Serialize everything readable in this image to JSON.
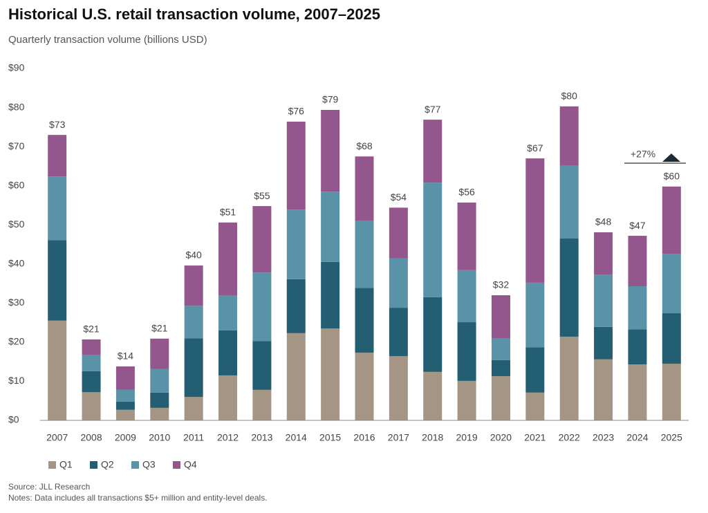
{
  "chart_data": {
    "type": "stacked_bar",
    "title": "Historical U.S. retail transaction volume, 2007–2025",
    "subtitle": "Quarterly transaction volume (billions USD)",
    "categories": [
      "2007",
      "2008",
      "2009",
      "2010",
      "2011",
      "2012",
      "2013",
      "2014",
      "2015",
      "2016",
      "2017",
      "2018",
      "2019",
      "2020",
      "2021",
      "2022",
      "2023",
      "2024",
      "2025"
    ],
    "series": [
      {
        "name": "Q1",
        "color": "#a59585",
        "values": [
          25.5,
          7.2,
          2.7,
          3.2,
          6.0,
          11.5,
          7.8,
          22.3,
          23.5,
          17.3,
          16.4,
          12.4,
          10.1,
          11.3,
          7.1,
          21.4,
          15.6,
          14.3,
          14.5
        ]
      },
      {
        "name": "Q2",
        "color": "#235e72",
        "values": [
          20.6,
          5.4,
          2.1,
          3.9,
          15.0,
          11.5,
          12.5,
          13.8,
          17.0,
          16.6,
          12.4,
          19.1,
          15.0,
          4.1,
          11.6,
          25.1,
          8.3,
          9.0,
          12.9
        ]
      },
      {
        "name": "Q3",
        "color": "#5a93a8",
        "values": [
          16.3,
          4.2,
          3.0,
          6.0,
          8.3,
          9.0,
          17.5,
          17.8,
          18.0,
          17.2,
          12.6,
          29.3,
          13.3,
          5.5,
          16.5,
          18.6,
          13.4,
          11.0,
          15.2
        ]
      },
      {
        "name": "Q4",
        "color": "#93578e",
        "values": [
          10.6,
          3.9,
          6.0,
          7.8,
          10.3,
          18.6,
          17.0,
          22.5,
          20.9,
          16.4,
          13.0,
          16.1,
          17.3,
          11.1,
          31.8,
          15.2,
          10.8,
          12.9,
          17.2
        ]
      }
    ],
    "totals": {
      "values": [
        73,
        21,
        14,
        21,
        40,
        51,
        55,
        76,
        79,
        68,
        54,
        77,
        56,
        32,
        67,
        80,
        48,
        47,
        60
      ],
      "value_labels": [
        "$73",
        "$21",
        "$14",
        "$21",
        "$40",
        "$51",
        "$55",
        "$76",
        "$79",
        "$68",
        "$54",
        "$77",
        "$56",
        "$32",
        "$67",
        "$80",
        "$48",
        "$47",
        "$60"
      ]
    },
    "ylim": [
      0,
      90
    ],
    "yticks": [
      {
        "value": 0,
        "label": "$0"
      },
      {
        "value": 10,
        "label": "$10"
      },
      {
        "value": 20,
        "label": "$20"
      },
      {
        "value": 30,
        "label": "$30"
      },
      {
        "value": 40,
        "label": "$40"
      },
      {
        "value": 50,
        "label": "$50"
      },
      {
        "value": 60,
        "label": "$60"
      },
      {
        "value": 70,
        "label": "$70"
      },
      {
        "value": 80,
        "label": "$80"
      },
      {
        "value": 90,
        "label": "$90"
      }
    ],
    "grid": false,
    "annotation": "+27%",
    "source": "Source: JLL Research",
    "notes": "Notes: Data includes all transactions $5+ million and entity-level deals."
  }
}
